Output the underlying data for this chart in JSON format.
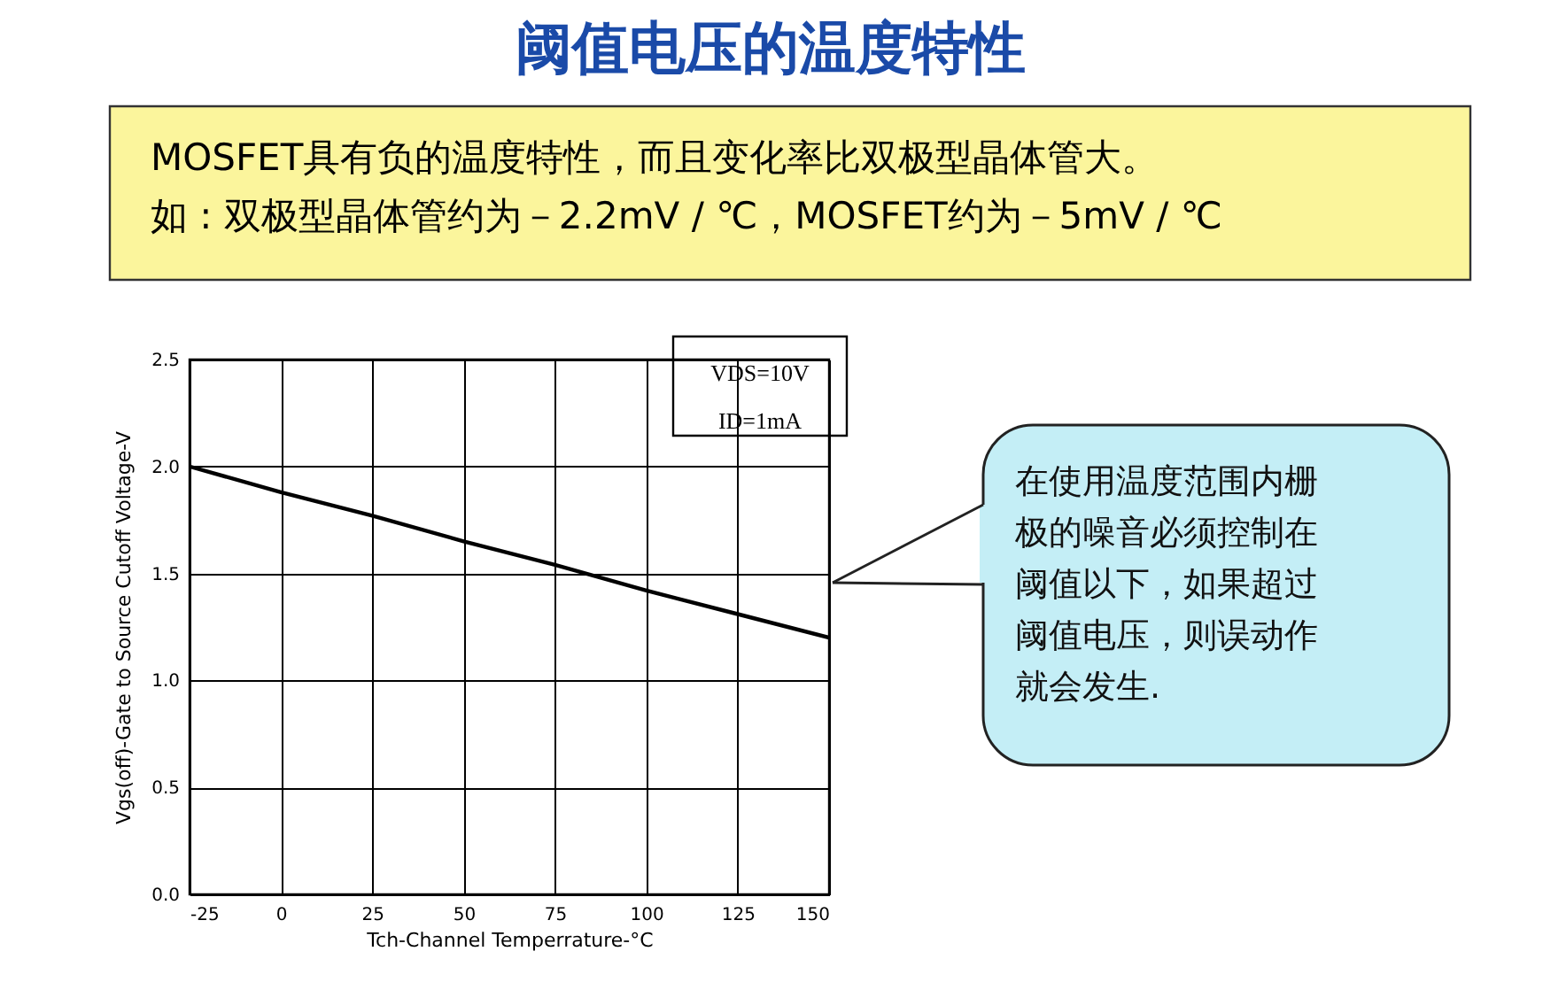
{
  "chart_data": {
    "type": "line",
    "title": "阈值电压的温度特性",
    "xlabel": "Tch-Channel Temperrature-°C",
    "ylabel": "Vgs(off)-Gate to Source Cutoff Voltage-V",
    "x": [
      -25,
      0,
      25,
      50,
      75,
      100,
      125,
      150
    ],
    "series": [
      {
        "color": "#000000",
        "values": [
          2.0,
          1.88,
          1.77,
          1.65,
          1.54,
          1.42,
          1.31,
          1.2
        ]
      }
    ],
    "xlim": [
      -25,
      150
    ],
    "xticks": [
      -25,
      0,
      25,
      50,
      75,
      100,
      125,
      150
    ],
    "ylim": [
      0,
      2.5
    ],
    "yticks": [
      {
        "value": 0,
        "label": "0.0"
      },
      {
        "value": 0.5,
        "label": "0.5"
      },
      {
        "value": 1,
        "label": "1.0"
      },
      {
        "value": 1.5,
        "label": "1.5"
      },
      {
        "value": 2,
        "label": "2.0"
      },
      {
        "value": 2.5,
        "label": "2.5"
      }
    ],
    "grid": true,
    "marker": "none",
    "line_style": "solid",
    "annotations": [
      "MOSFET具有负的温度特性，而且变化率比双极型晶体管大。",
      "如 : 双极型晶体管约为－2.2mV / ℃，MOSFET约为－5mV  / ℃",
      "VDS=10V",
      "ID=1mA",
      "在使用温度范围内栅极的噪音必须控制在阈值以下，如果超过阈值电压，则误动作就会发生."
    ]
  }
}
